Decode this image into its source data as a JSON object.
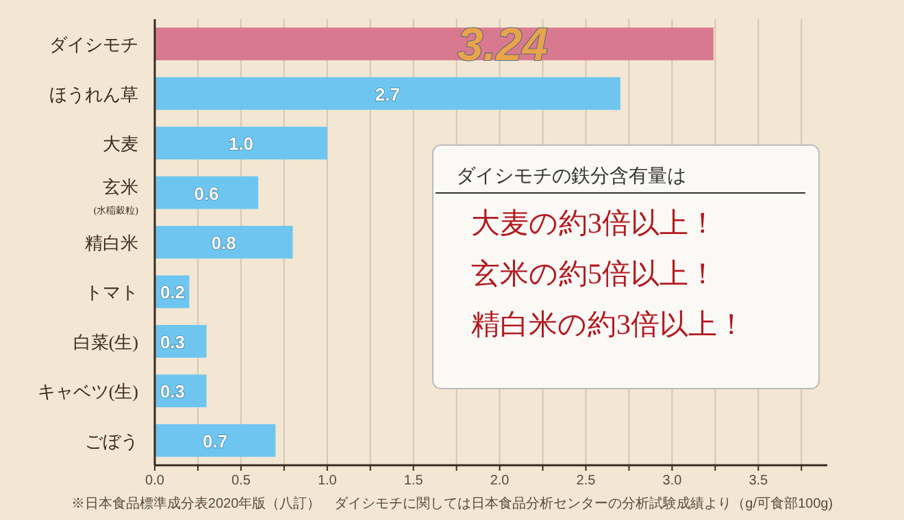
{
  "chart_data": {
    "type": "bar",
    "orientation": "horizontal",
    "categories": [
      "ダイシモチ",
      "ほうれん草",
      "大麦",
      "玄米$_{(水稲穀粒)}$",
      "精白米",
      "トマト",
      "白菜(生)",
      "キャベツ(生)",
      "ごぼう"
    ],
    "values": [
      3.24,
      2.7,
      1.0,
      0.6,
      0.8,
      0.2,
      0.3,
      0.3,
      0.7
    ],
    "value_labels": [
      "3.24",
      "2.7",
      "1.0",
      "0.6",
      "0.8",
      "0.2",
      "0.3",
      "0.3",
      "0.7"
    ],
    "colors": [
      "#d9798f",
      "#6ec6f0",
      "#6ec6f0",
      "#6ec6f0",
      "#6ec6f0",
      "#6ec6f0",
      "#6ec6f0",
      "#6ec6f0",
      "#6ec6f0"
    ],
    "xlim": [
      0,
      3.9
    ],
    "xticks": [
      {
        "value": 0,
        "label": "0.0"
      },
      {
        "value": 0.25,
        "label": null
      },
      0.5,
      {
        "value": 0.75,
        "label": null
      },
      {
        "value": 1,
        "label": "1.0"
      },
      {
        "value": 1.25,
        "label": null
      },
      1.5,
      {
        "value": 1.75,
        "label": null
      },
      {
        "value": 2,
        "label": "2.0"
      },
      {
        "value": 2.25,
        "label": null
      },
      2.5,
      {
        "value": 2.75,
        "label": null
      },
      {
        "value": 3,
        "label": "3.0"
      },
      {
        "value": 3.25,
        "label": null
      },
      3.5,
      {
        "value": 3.75,
        "label": null
      }
    ],
    "grid": "x",
    "annotations": [
      "ダイシモチの鉄分含有量は",
      "大麦の約3倍以上！",
      "玄米の約5倍以上！",
      "精白米の約3倍以上！",
      "※日本食品標準成分表2020年版（八訂）　ダイシモチに関しては日本食品分析センターの分析試験成績より（g/可食部100g)"
    ]
  }
}
